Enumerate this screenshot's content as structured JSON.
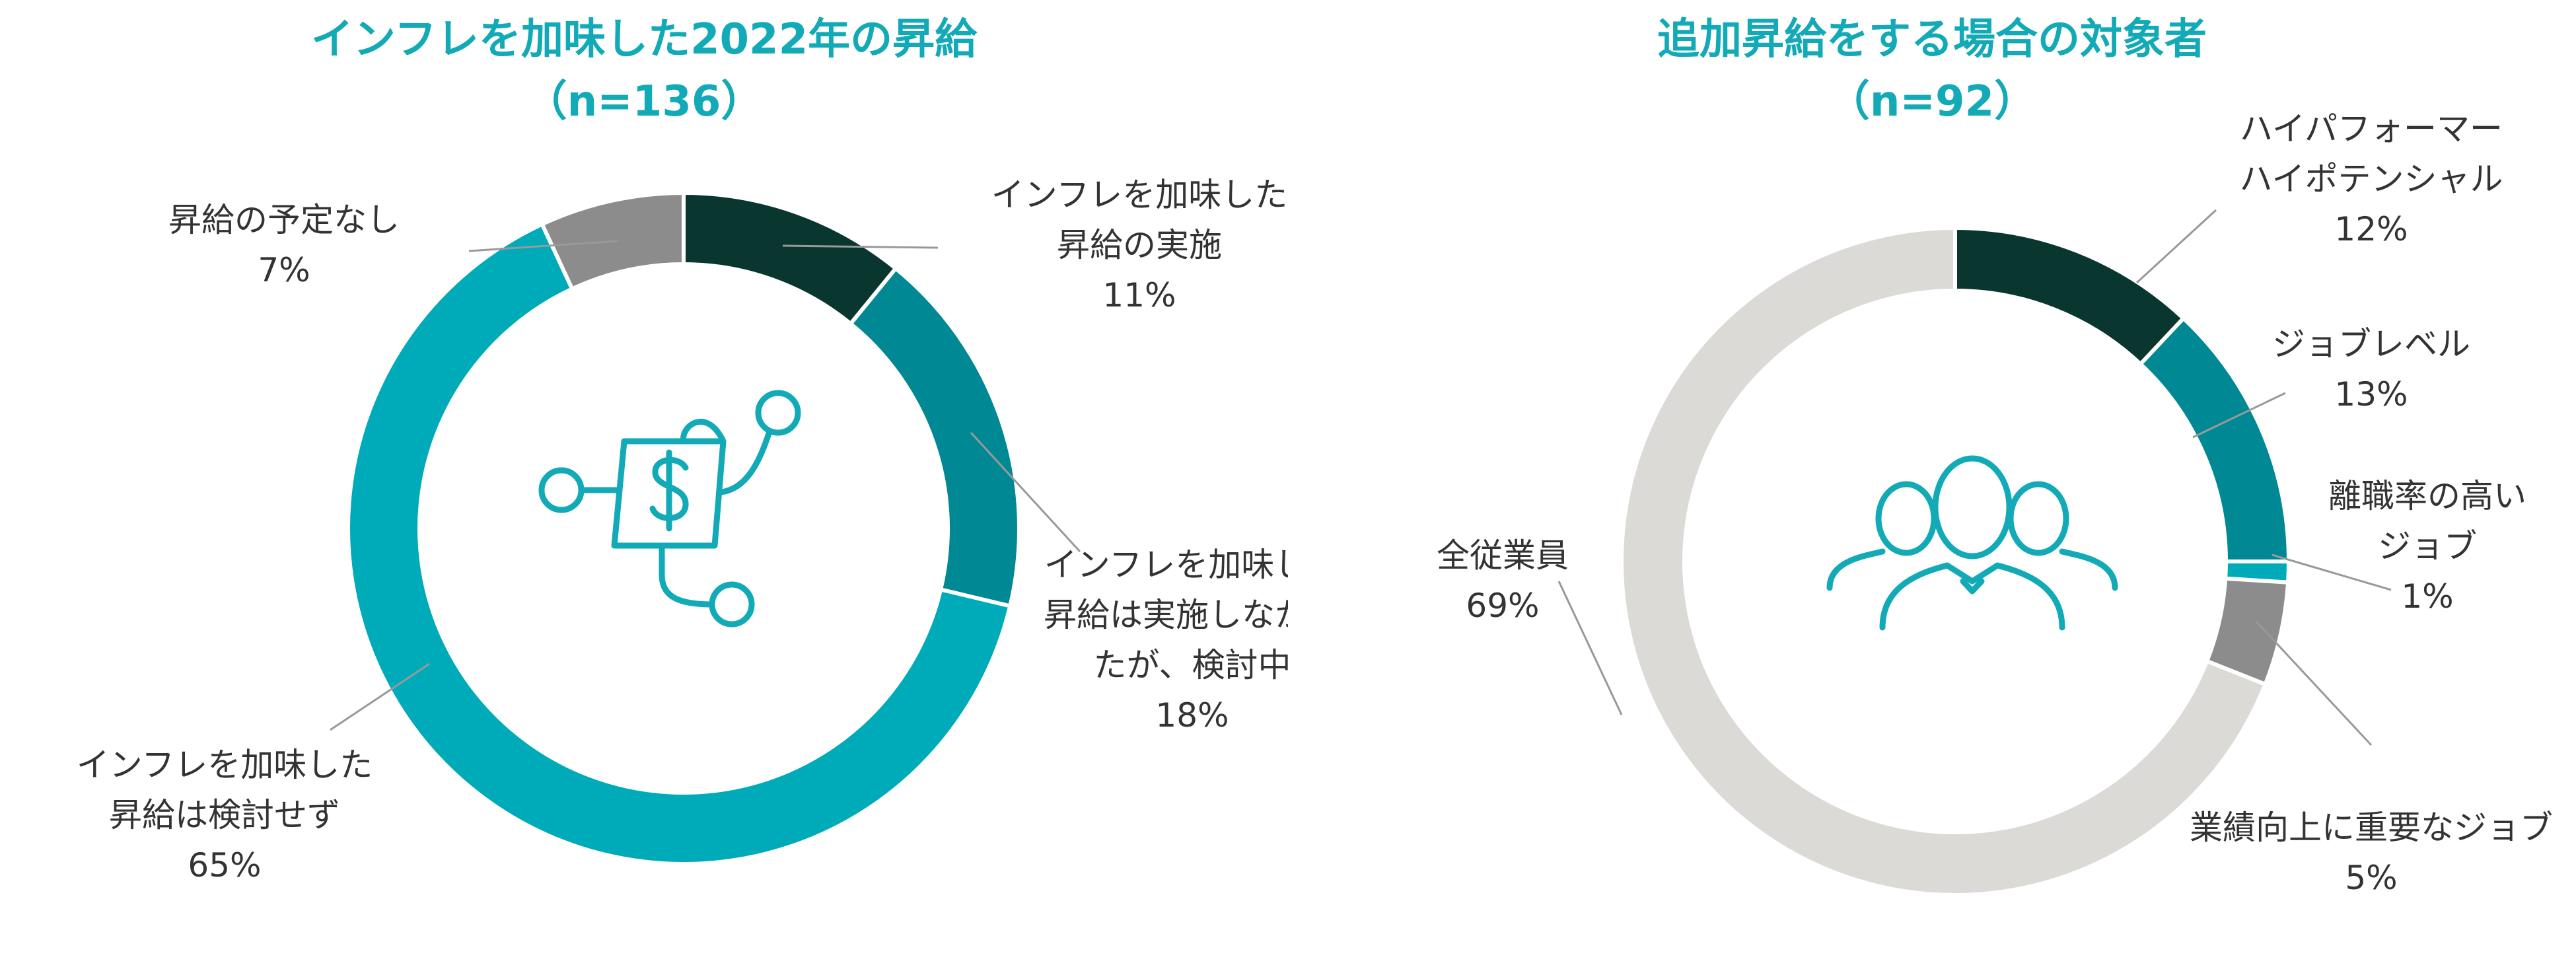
{
  "chart_data": [
    {
      "type": "pie",
      "title": "インフレを加味した2022年の昇給",
      "subtitle": "（n=136）",
      "donut": true,
      "slices": [
        {
          "label": "インフレを加味した昇給の実施",
          "label_lines": [
            "インフレを加味した",
            "昇給の実施"
          ],
          "value": 11,
          "value_text": "11%",
          "color": "#0a3630"
        },
        {
          "label": "インフレを加味した昇給は実施しなかったが、検討中",
          "label_lines": [
            "インフレを加味した",
            "昇給は実施しなかっ",
            "たが、検討中"
          ],
          "value": 18,
          "value_text": "18%",
          "color": "#008994"
        },
        {
          "label": "インフレを加味した昇給は検討せず",
          "label_lines": [
            "インフレを加味した",
            "昇給は検討せず"
          ],
          "value": 65,
          "value_text": "65%",
          "color": "#00abb9"
        },
        {
          "label": "昇給の予定なし",
          "label_lines": [
            "昇給の予定なし"
          ],
          "value": 7,
          "value_text": "7%",
          "color": "#8c8c8c"
        }
      ],
      "center_icon": "dollar-growth-icon"
    },
    {
      "type": "pie",
      "title": "追加昇給をする場合の対象者",
      "subtitle": "（n=92）",
      "donut": true,
      "slices": [
        {
          "label": "ハイパフォーマーハイポテンシャル",
          "label_lines": [
            "ハイパフォーマー",
            "ハイポテンシャル"
          ],
          "value": 12,
          "value_text": "12%",
          "color": "#0a3630"
        },
        {
          "label": "ジョブレベル",
          "label_lines": [
            "ジョブレベル"
          ],
          "value": 13,
          "value_text": "13%",
          "color": "#008994"
        },
        {
          "label": "離職率の高いジョブ",
          "label_lines": [
            "離職率の高い",
            "ジョブ"
          ],
          "value": 1,
          "value_text": "1%",
          "color": "#00abb9"
        },
        {
          "label": "業績向上に重要なジョブ",
          "label_lines": [
            "業績向上に重要なジョブ"
          ],
          "value": 5,
          "value_text": "5%",
          "color": "#8c8c8c"
        },
        {
          "label": "全従業員",
          "label_lines": [
            "全従業員"
          ],
          "value": 69,
          "value_text": "69%",
          "color": "#dcdad7"
        }
      ],
      "center_icon": "people-group-icon"
    }
  ],
  "colors": {
    "title": "#12aab7",
    "icon": "#12aab7",
    "leader": "#999999",
    "text": "#333333"
  }
}
